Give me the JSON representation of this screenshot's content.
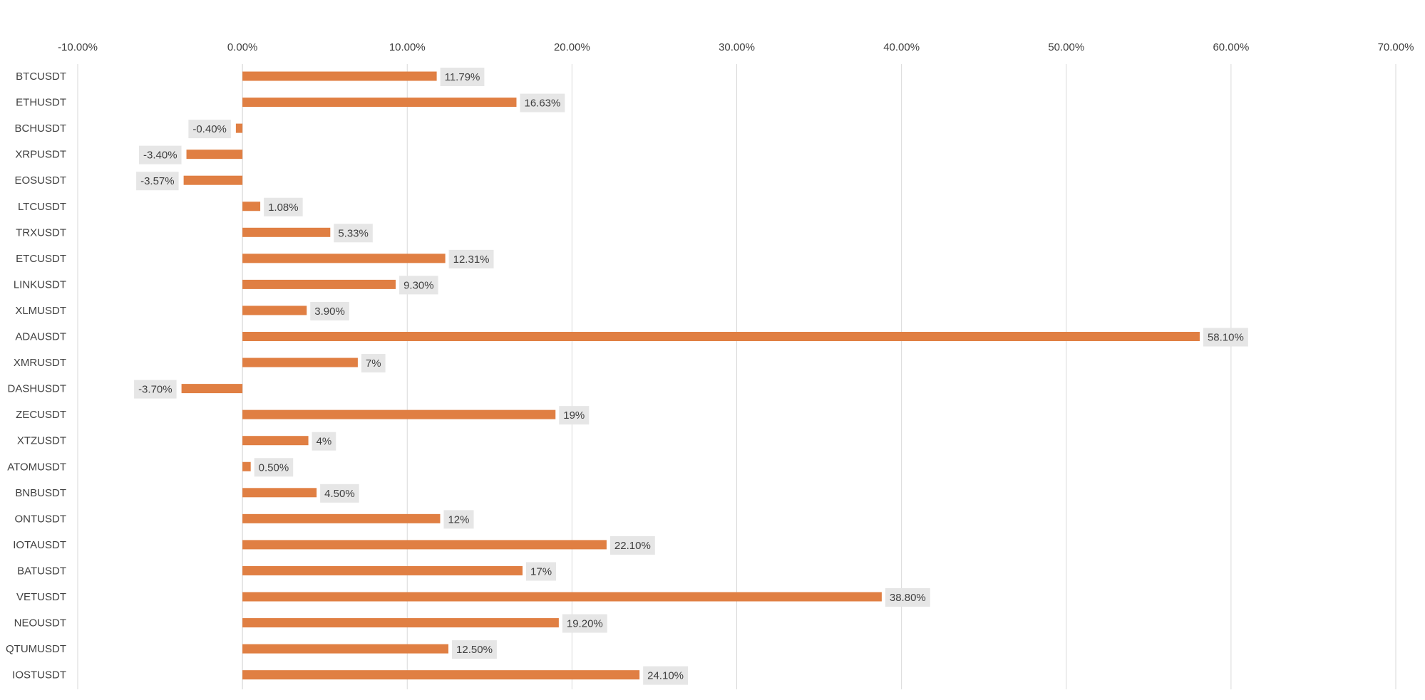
{
  "chart_data": {
    "type": "bar",
    "orientation": "horizontal",
    "title": "",
    "xlabel": "",
    "ylabel": "",
    "xlim": [
      -10,
      70
    ],
    "x_ticks": [
      -10,
      0,
      10,
      20,
      30,
      40,
      50,
      60,
      70
    ],
    "x_tick_labels": [
      "-10.00%",
      "0.00%",
      "10.00%",
      "20.00%",
      "30.00%",
      "40.00%",
      "50.00%",
      "60.00%",
      "70.00%"
    ],
    "x_axis_position": "top",
    "grid": true,
    "legend": "none",
    "categories": [
      "BTCUSDT",
      "ETHUSDT",
      "BCHUSDT",
      "XRPUSDT",
      "EOSUSDT",
      "LTCUSDT",
      "TRXUSDT",
      "ETCUSDT",
      "LINKUSDT",
      "XLMUSDT",
      "ADAUSDT",
      "XMRUSDT",
      "DASHUSDT",
      "ZECUSDT",
      "XTZUSDT",
      "ATOMUSDT",
      "BNBUSDT",
      "ONTUSDT",
      "IOTAUSDT",
      "BATUSDT",
      "VETUSDT",
      "NEOUSDT",
      "QTUMUSDT",
      "IOSTUSDT"
    ],
    "values": [
      11.79,
      16.63,
      -0.4,
      -3.4,
      -3.57,
      1.08,
      5.33,
      12.31,
      9.3,
      3.9,
      58.1,
      7,
      -3.7,
      19,
      4,
      0.5,
      4.5,
      12,
      22.1,
      17,
      38.8,
      19.2,
      12.5,
      24.1
    ],
    "data_labels": [
      "11.79%",
      "16.63%",
      "-0.40%",
      "-3.40%",
      "-3.57%",
      "1.08%",
      "5.33%",
      "12.31%",
      "9.30%",
      "3.90%",
      "58.10%",
      "7%",
      "-3.70%",
      "19%",
      "4%",
      "0.50%",
      "4.50%",
      "12%",
      "22.10%",
      "17%",
      "38.80%",
      "19.20%",
      "12.50%",
      "24.10%"
    ],
    "colors": {
      "bar": "#E07F43",
      "gridline": "#D9D9D9",
      "zero_line": "#D0D0D0",
      "label_background": "#E6E6E6",
      "text": "#404040"
    }
  }
}
